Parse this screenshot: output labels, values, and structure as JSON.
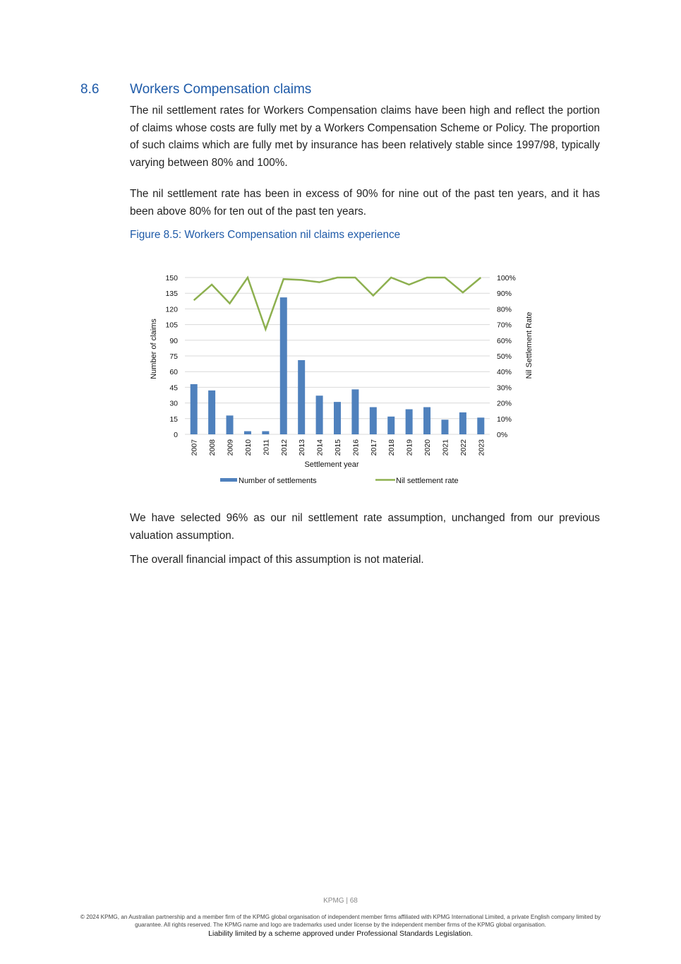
{
  "section": {
    "number": "8.6",
    "title": "Workers Compensation claims"
  },
  "paragraphs": [
    "The nil settlement rates for Workers Compensation claims have been high and reflect the portion of claims whose costs are fully met by a Workers Compensation Scheme or Policy. The proportion of such claims which are fully met by insurance has been relatively stable since 1997/98, typically varying between 80% and 100%.",
    "The nil settlement rate has been in excess of 90% for nine out of the past ten years, and it has been above 80% for ten out of the past ten years."
  ],
  "figure_caption": "Figure 8.5: Workers Compensation nil claims experience",
  "chart_data": {
    "type": "bar+line",
    "categories": [
      "2007",
      "2008",
      "2009",
      "2010",
      "2011",
      "2012",
      "2013",
      "2014",
      "2015",
      "2016",
      "2017",
      "2018",
      "2019",
      "2020",
      "2021",
      "2022",
      "2023"
    ],
    "series": [
      {
        "name": "Number of settlements",
        "type": "bar",
        "axis": "left",
        "color": "#4f81bd",
        "values": [
          48,
          42,
          18,
          3,
          3,
          131,
          71,
          37,
          31,
          43,
          26,
          17,
          24,
          26,
          14,
          21,
          16
        ]
      },
      {
        "name": "Nil settlement rate",
        "type": "line",
        "axis": "right",
        "color": "#8db04f",
        "values": [
          85.5,
          95.5,
          83.5,
          100,
          67,
          99,
          98.5,
          97,
          100,
          100,
          88.5,
          100,
          95.5,
          100,
          100,
          90.5,
          100
        ]
      }
    ],
    "xlabel": "Settlement year",
    "ylabel": "Number of claims",
    "y2label": "Nil Settlement Rate",
    "ylim": [
      0,
      150
    ],
    "yticks": [
      "0",
      "15",
      "30",
      "45",
      "60",
      "75",
      "90",
      "105",
      "120",
      "135",
      "150"
    ],
    "y2lim": [
      0,
      100
    ],
    "y2ticks": [
      "0%",
      "10%",
      "20%",
      "30%",
      "40%",
      "50%",
      "60%",
      "70%",
      "80%",
      "90%",
      "100%"
    ],
    "grid": true,
    "legend": "bottom"
  },
  "after_paragraphs": [
    "We have selected 96% as our nil settlement rate assumption, unchanged from our previous valuation assumption.",
    "The overall financial impact of this assumption is not material."
  ],
  "footer": {
    "page": "KPMG  |  68",
    "copyright": "© 2024 KPMG, an Australian partnership and a member firm of the KPMG global organisation of independent member firms affiliated with KPMG International Limited, a private English company limited by guarantee. All rights reserved. The KPMG name and logo are trademarks used under license by the independent member  firms of the KPMG global organisation.",
    "liability": "Liability limited by a scheme approved under Professional Standards Legislation."
  }
}
